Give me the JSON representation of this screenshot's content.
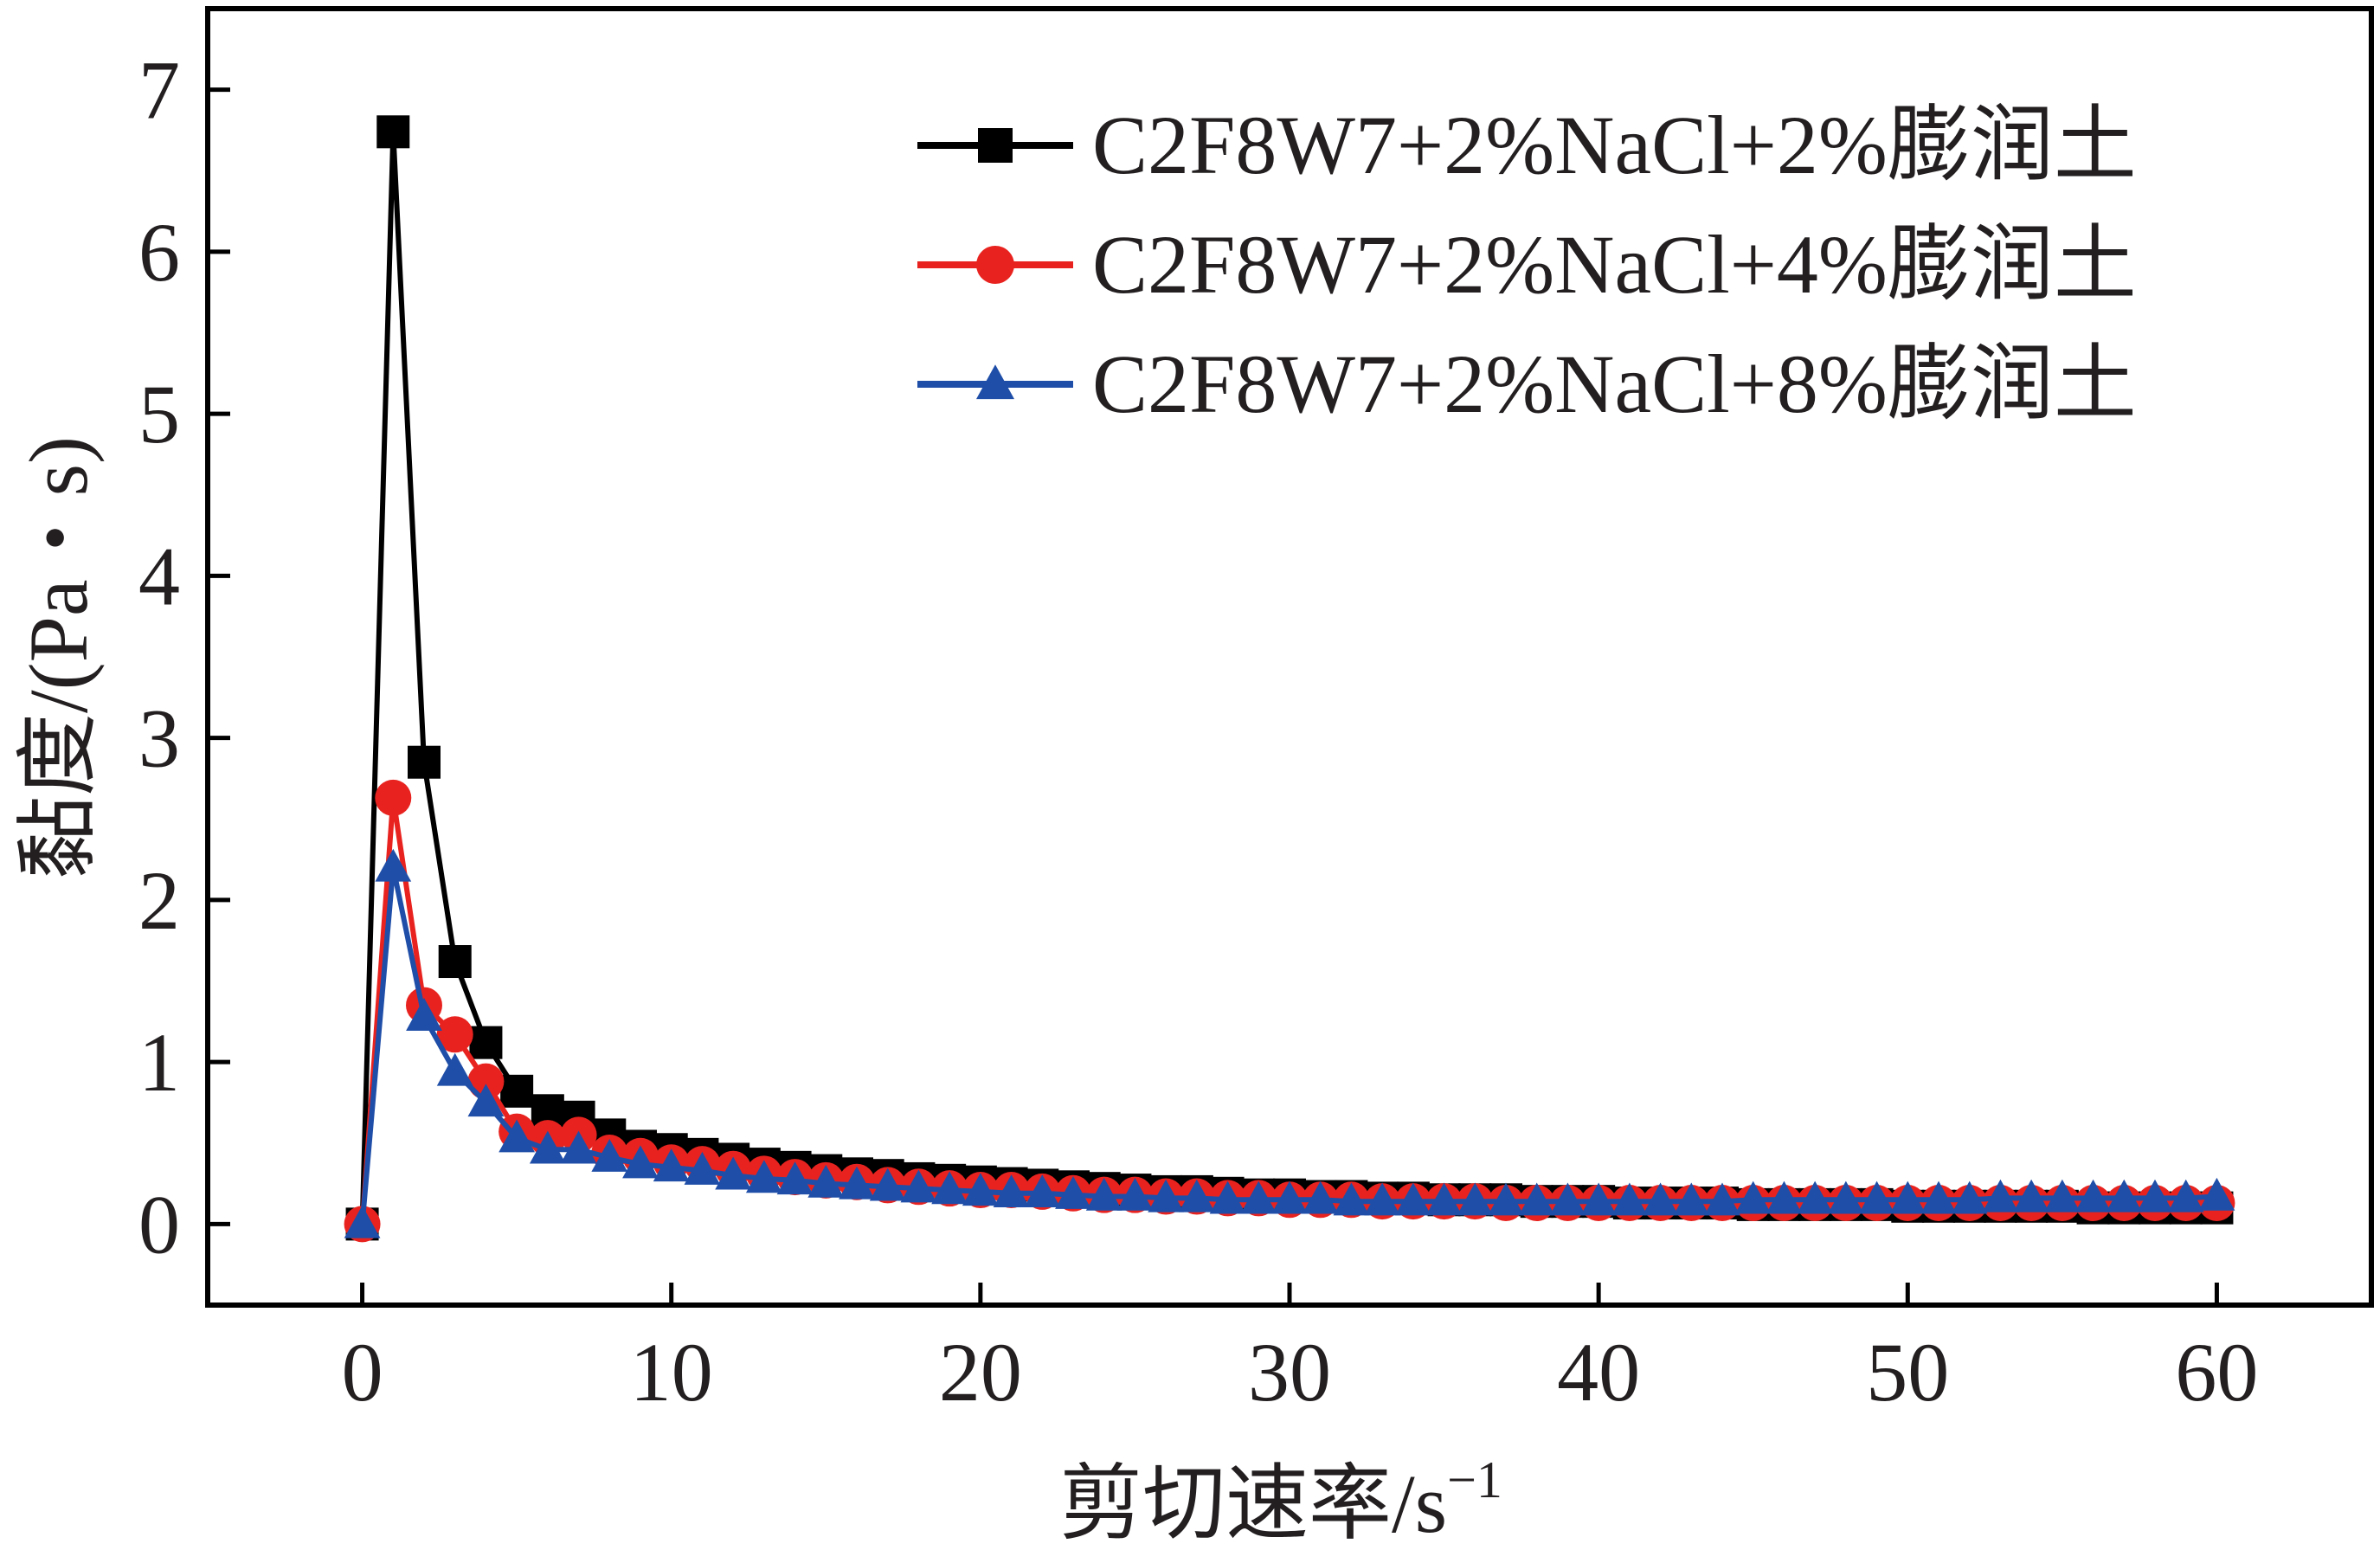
{
  "chart_data": {
    "type": "line",
    "title": "",
    "xlabel": "剪切速率/s",
    "xlabel_superscript": "−1",
    "ylabel": "黏度/(Pa・s)",
    "xlim": [
      -5,
      65
    ],
    "ylim": [
      -0.5,
      7.5
    ],
    "xticks": [
      "0",
      "10",
      "20",
      "30",
      "40",
      "50",
      "60"
    ],
    "yticks": [
      "0",
      "1",
      "2",
      "3",
      "4",
      "5",
      "6",
      "7"
    ],
    "grid": false,
    "legend_position": "top-right",
    "x": [
      0,
      1,
      2,
      3,
      4,
      5,
      6,
      7,
      8,
      9,
      10,
      11,
      12,
      13,
      14,
      15,
      16,
      17,
      18,
      19,
      20,
      21,
      22,
      23,
      24,
      25,
      26,
      27,
      28,
      29,
      30,
      31,
      32,
      33,
      34,
      35,
      36,
      37,
      38,
      39,
      40,
      41,
      42,
      43,
      44,
      45,
      46,
      47,
      48,
      49,
      50,
      51,
      52,
      53,
      54,
      55,
      56,
      57,
      58,
      59,
      60
    ],
    "series": [
      {
        "name": "C2F8W7+2%NaCl+2%膨润土",
        "color": "#000000",
        "marker": "square",
        "values": [
          0,
          6.74,
          2.85,
          1.62,
          1.12,
          0.82,
          0.7,
          0.66,
          0.55,
          0.48,
          0.46,
          0.43,
          0.4,
          0.37,
          0.35,
          0.33,
          0.31,
          0.3,
          0.28,
          0.27,
          0.26,
          0.25,
          0.24,
          0.23,
          0.22,
          0.21,
          0.2,
          0.2,
          0.19,
          0.18,
          0.18,
          0.17,
          0.17,
          0.16,
          0.16,
          0.15,
          0.15,
          0.15,
          0.14,
          0.14,
          0.14,
          0.13,
          0.13,
          0.13,
          0.13,
          0.12,
          0.12,
          0.12,
          0.12,
          0.12,
          0.11,
          0.11,
          0.11,
          0.11,
          0.11,
          0.11,
          0.1,
          0.1,
          0.1,
          0.1,
          0.1
        ]
      },
      {
        "name": "C2F8W7+2%NaCl+4%膨润土",
        "color": "#e8231f",
        "marker": "circle",
        "values": [
          0,
          2.63,
          1.35,
          1.17,
          0.88,
          0.57,
          0.53,
          0.55,
          0.44,
          0.42,
          0.38,
          0.37,
          0.34,
          0.31,
          0.29,
          0.27,
          0.26,
          0.24,
          0.23,
          0.22,
          0.21,
          0.21,
          0.2,
          0.19,
          0.18,
          0.18,
          0.17,
          0.17,
          0.16,
          0.16,
          0.15,
          0.15,
          0.15,
          0.14,
          0.14,
          0.14,
          0.14,
          0.13,
          0.13,
          0.13,
          0.13,
          0.13,
          0.13,
          0.13,
          0.13,
          0.13,
          0.13,
          0.13,
          0.13,
          0.13,
          0.13,
          0.13,
          0.13,
          0.13,
          0.13,
          0.13,
          0.13,
          0.13,
          0.13,
          0.13,
          0.13
        ]
      },
      {
        "name": "C2F8W7+2%NaCl+8%膨润土",
        "color": "#1f4ea8",
        "marker": "triangle",
        "values": [
          0,
          2.2,
          1.28,
          0.94,
          0.75,
          0.53,
          0.46,
          0.46,
          0.41,
          0.37,
          0.35,
          0.33,
          0.3,
          0.28,
          0.27,
          0.25,
          0.24,
          0.23,
          0.22,
          0.21,
          0.2,
          0.19,
          0.19,
          0.18,
          0.17,
          0.17,
          0.16,
          0.16,
          0.15,
          0.15,
          0.15,
          0.15,
          0.14,
          0.14,
          0.14,
          0.14,
          0.14,
          0.14,
          0.14,
          0.14,
          0.14,
          0.14,
          0.14,
          0.14,
          0.14,
          0.15,
          0.15,
          0.15,
          0.15,
          0.15,
          0.15,
          0.15,
          0.15,
          0.16,
          0.16,
          0.16,
          0.16,
          0.16,
          0.16,
          0.16,
          0.17
        ]
      }
    ]
  }
}
